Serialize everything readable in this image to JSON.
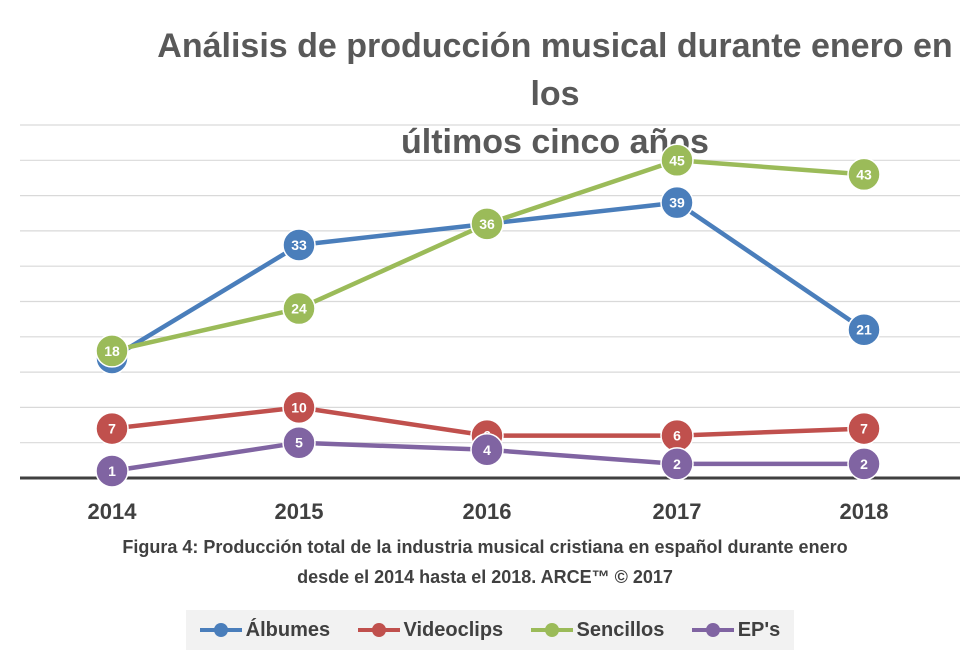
{
  "chart_data": {
    "type": "line",
    "title_line1": "Análisis de producción musical durante enero en los",
    "title_line2": "últimos cinco años",
    "caption_line1": "Figura 4: Producción total de la industria musical cristiana en español durante enero",
    "caption_line2": "desde el 2014 hasta el 2018.  ARCE™ © 2017",
    "categories": [
      "2014",
      "2015",
      "2016",
      "2017",
      "2018"
    ],
    "ylim": [
      0,
      50
    ],
    "grid": true,
    "legend_position": "bottom",
    "series": [
      {
        "name": "Álbumes",
        "color": "#4a7ebb",
        "values": [
          17,
          33,
          36,
          39,
          21
        ]
      },
      {
        "name": "Videoclips",
        "color": "#c0504d",
        "values": [
          7,
          10,
          6,
          6,
          7
        ]
      },
      {
        "name": "Sencillos",
        "color": "#9bbb59",
        "values": [
          18,
          24,
          36,
          45,
          43
        ]
      },
      {
        "name": "EP's",
        "color": "#8064a2",
        "values": [
          1,
          5,
          4,
          2,
          2
        ]
      }
    ]
  }
}
